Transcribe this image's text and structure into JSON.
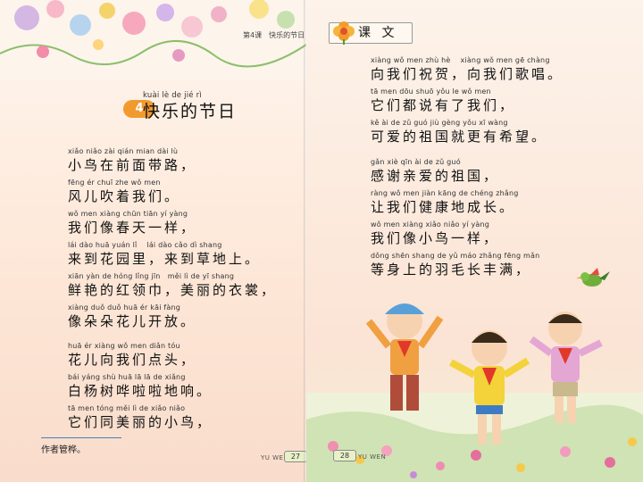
{
  "left_page": {
    "running_head": "第4课　快乐的节日",
    "lesson": {
      "number": "4",
      "title_pinyin": "kuài lè de jié rì",
      "title": "快乐的节日"
    },
    "verses": [
      {
        "pinyin": "xiǎo niǎo zài qián mian dài lù",
        "text": "小鸟在前面带路，"
      },
      {
        "pinyin": "fēng ér chuī zhe wǒ men",
        "text": "风儿吹着我们。"
      },
      {
        "pinyin": "wǒ men xiàng chūn tiān yí yàng",
        "text": "我们像春天一样，"
      },
      {
        "pinyin": "lái dào huā yuán lǐ　 lái dào cǎo dì shang",
        "text": "来到花园里，来到草地上。"
      },
      {
        "pinyin": "xiān yàn de hóng lǐng jīn　měi lì de yī shang",
        "text": "鲜艳的红领巾，美丽的衣裳，"
      },
      {
        "pinyin": "xiàng duǒ duǒ huā ér kāi fàng",
        "text": "像朵朵花儿开放。"
      },
      {
        "pinyin": "huā ér xiàng wǒ men diǎn tóu",
        "text": "花儿向我们点头，"
      },
      {
        "pinyin": "bái yáng shù huā lā lā de xiǎng",
        "text": "白杨树哗啦啦地响。"
      },
      {
        "pinyin": "tā men tóng měi lì de xiǎo niǎo",
        "text": "它们同美丽的小鸟，"
      }
    ],
    "footnote": "作者管桦。",
    "page_label": "YU WEN",
    "page_number": "27"
  },
  "right_page": {
    "section_label": "课 文",
    "verses": [
      {
        "pinyin": "xiàng wǒ men zhù hè　 xiàng wǒ men gē chàng",
        "text": "向我们祝贺，向我们歌唱。"
      },
      {
        "pinyin": "tā men dōu shuō yǒu le wǒ men",
        "text": "它们都说有了我们，"
      },
      {
        "pinyin": "kě ài de zǔ guó jiù gèng yǒu xī wàng",
        "text": "可爱的祖国就更有希望。"
      },
      {
        "pinyin": "gǎn xiè qīn ài de zǔ guó",
        "text": "感谢亲爱的祖国，"
      },
      {
        "pinyin": "ràng wǒ men jiàn kāng de chéng zhǎng",
        "text": "让我们健康地成长。"
      },
      {
        "pinyin": "wǒ men xiàng xiǎo niǎo yí yàng",
        "text": "我们像小鸟一样，"
      },
      {
        "pinyin": "dǒng shēn shang de yǔ máo zhǎng fēng mǎn",
        "text": "等身上的羽毛长丰满，"
      }
    ],
    "page_label": "YU WEN",
    "page_number": "28"
  },
  "colors": {
    "lesson_badge": "#f29a2e",
    "page_num_bg": "#e8f0c8",
    "footnote_rule": "#4a7fb5"
  }
}
